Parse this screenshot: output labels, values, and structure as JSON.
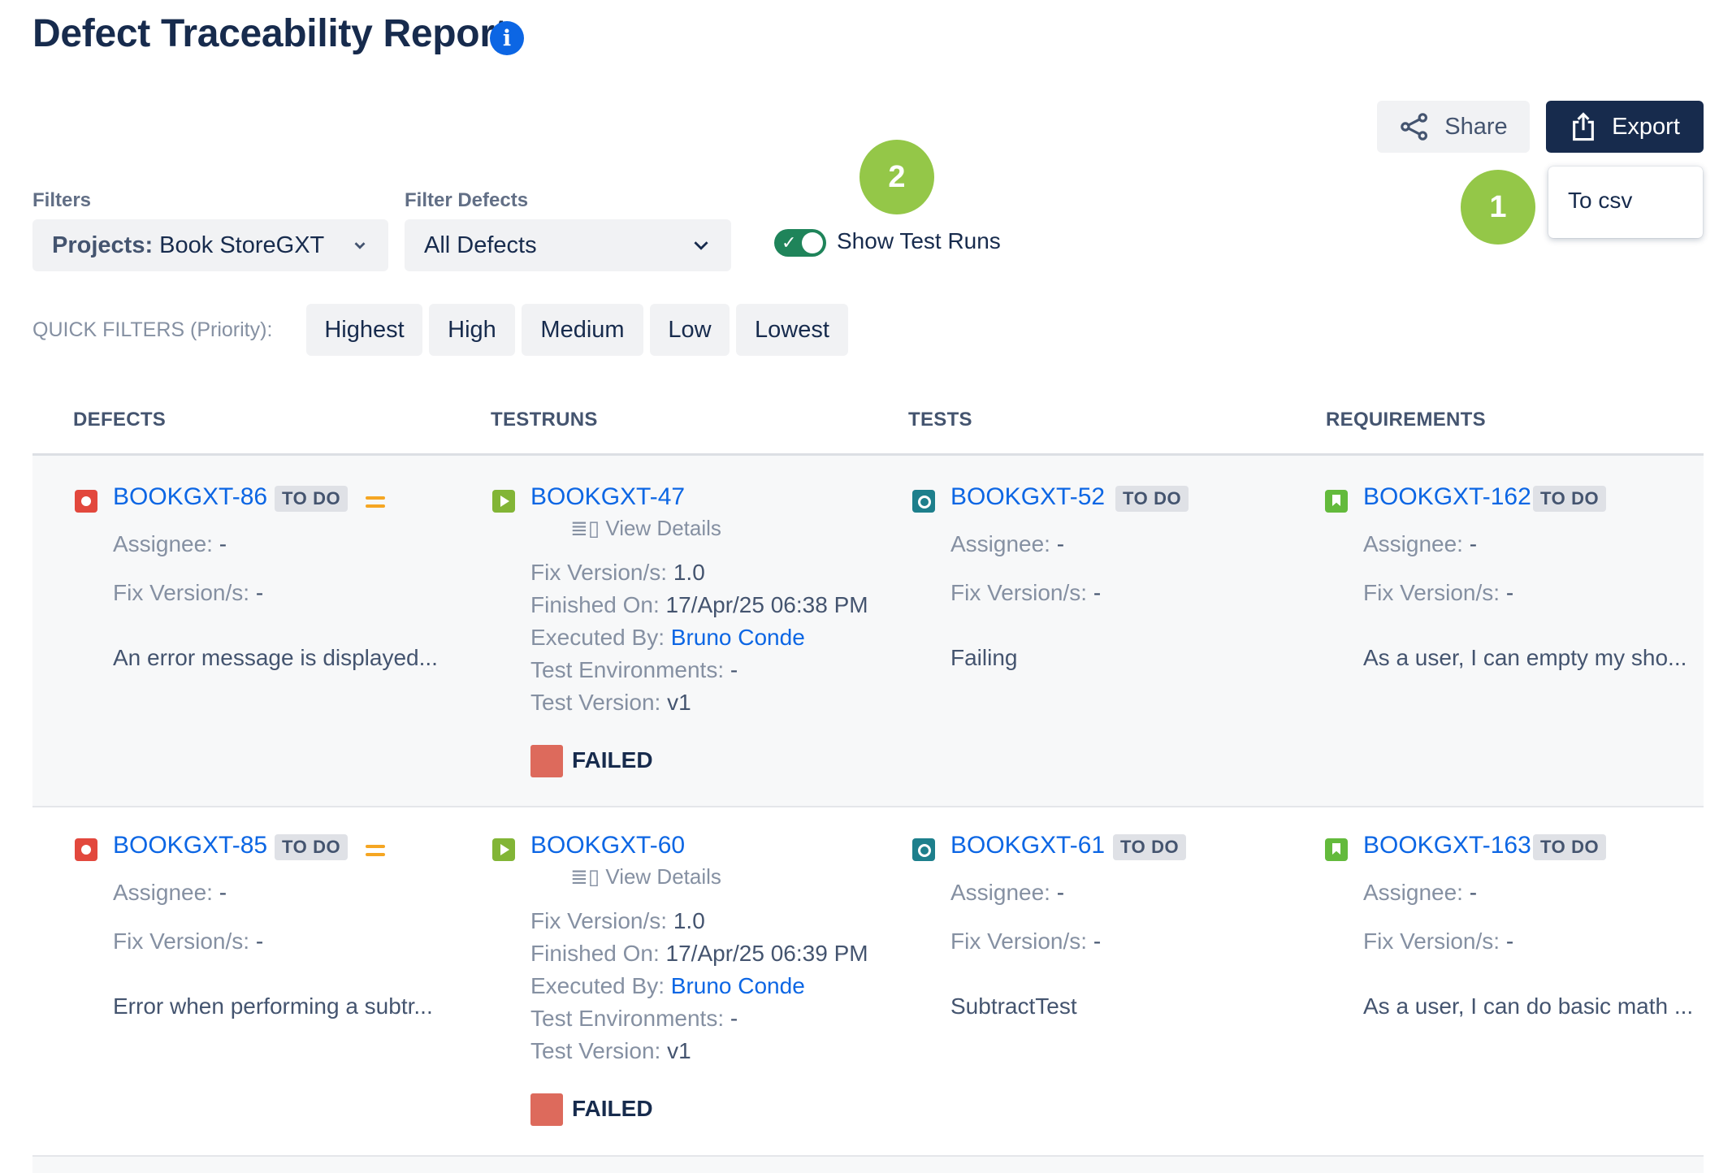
{
  "header": {
    "title": "Defect Traceability Report",
    "info_icon": "i"
  },
  "actions": {
    "share_label": "Share",
    "export_label": "Export",
    "export_menu": [
      "To csv"
    ]
  },
  "callouts": [
    "1",
    "2"
  ],
  "filters": {
    "filters_label": "Filters",
    "projects_key": "Projects:",
    "projects_value": "Book StoreGXT",
    "filter_defects_label": "Filter Defects",
    "filter_defects_value": "All Defects",
    "show_test_runs_label": "Show Test Runs",
    "show_test_runs_on": true
  },
  "quick_filters": {
    "label": "QUICK FILTERS (Priority):",
    "chips": [
      "Highest",
      "High",
      "Medium",
      "Low",
      "Lowest"
    ]
  },
  "columns": [
    "DEFECTS",
    "TESTRUNS",
    "TESTS",
    "REQUIREMENTS"
  ],
  "labels": {
    "assignee": "Assignee:",
    "fix_version": "Fix Version/s:",
    "finished_on": "Finished On:",
    "executed_by": "Executed By:",
    "test_environments": "Test Environments:",
    "test_version": "Test Version:",
    "view_details": "View Details"
  },
  "rows": [
    {
      "defect": {
        "key": "BOOKGXT-86",
        "status": "TO DO",
        "assignee": "-",
        "fix_version": "-",
        "summary": "An error message is displayed..."
      },
      "testrun": {
        "key": "BOOKGXT-47",
        "fix_version": "1.0",
        "finished_on": "17/Apr/25 06:38 PM",
        "executed_by": "Bruno Conde",
        "test_environments": "-",
        "test_version": "v1",
        "result": "FAILED"
      },
      "test": {
        "key": "BOOKGXT-52",
        "status": "TO DO",
        "assignee": "-",
        "fix_version": "-",
        "summary": "Failing"
      },
      "requirement": {
        "key": "BOOKGXT-162",
        "status": "TO DO",
        "assignee": "-",
        "fix_version": "-",
        "summary": "As a user, I can empty my sho..."
      }
    },
    {
      "defect": {
        "key": "BOOKGXT-85",
        "status": "TO DO",
        "assignee": "-",
        "fix_version": "-",
        "summary": "Error when performing a subtr..."
      },
      "testrun": {
        "key": "BOOKGXT-60",
        "fix_version": "1.0",
        "finished_on": "17/Apr/25 06:39 PM",
        "executed_by": "Bruno Conde",
        "test_environments": "-",
        "test_version": "v1",
        "result": "FAILED"
      },
      "test": {
        "key": "BOOKGXT-61",
        "status": "TO DO",
        "assignee": "-",
        "fix_version": "-",
        "summary": "SubtractTest"
      },
      "requirement": {
        "key": "BOOKGXT-163",
        "status": "TO DO",
        "assignee": "-",
        "fix_version": "-",
        "summary": "As a user, I can do basic math ..."
      }
    }
  ],
  "colors": {
    "primary_dark": "#172b4d",
    "link": "#0c66e4",
    "toggle_on": "#1f845a",
    "callout": "#94c748",
    "failed": "#dd6a5c",
    "priority_medium": "#f5a623"
  }
}
